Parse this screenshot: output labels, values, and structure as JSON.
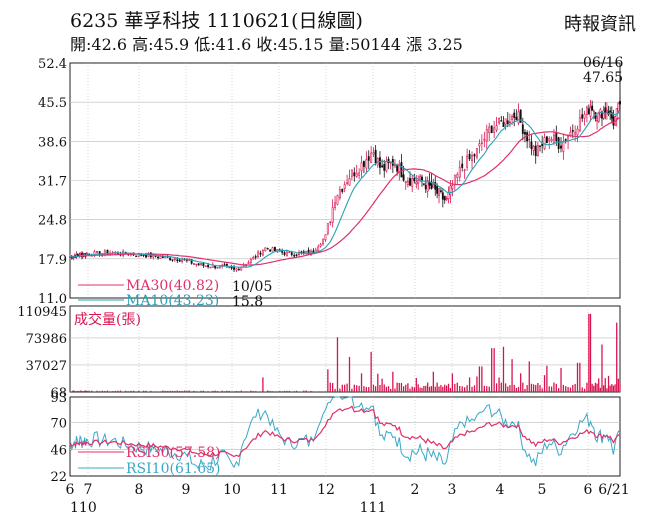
{
  "header": {
    "code": "6235",
    "name": "華孚科技",
    "date": "1110621",
    "period": "(日線圖)",
    "brand": "時報資訊",
    "open_label": "開:",
    "open": "42.6",
    "high_label": "高:",
    "high": "45.9",
    "low_label": "低:",
    "low": "41.6",
    "close_label": "收:",
    "close": "45.15",
    "volume_label": "量:",
    "volume": "50144",
    "change_label": "漲",
    "change": "3.25"
  },
  "chart_data": {
    "type": "candlestick",
    "price_panel": {
      "y_ticks": [
        "52.4",
        "45.5",
        "38.6",
        "31.7",
        "24.8",
        "17.9",
        "11.0"
      ],
      "ylim": [
        11.0,
        52.4
      ],
      "ma_labels": [
        "MA30(40.82)",
        "MA10(43.23)"
      ],
      "ma_colors": [
        "#e0306a",
        "#2aa0b8"
      ],
      "annotations": [
        {
          "label": "06/16",
          "value": "47.65",
          "type": "high"
        },
        {
          "label": "10/05",
          "value": "15.8",
          "type": "low"
        }
      ]
    },
    "volume_panel": {
      "title": "成交量(張)",
      "y_ticks": [
        "110945",
        "73986",
        "37027",
        "68"
      ],
      "ylim": [
        68,
        110945
      ]
    },
    "rsi_panel": {
      "y_ticks": [
        "93",
        "70",
        "46",
        "22"
      ],
      "ylim": [
        22,
        93
      ],
      "rsi_labels": [
        "RSI30(57.58)",
        "RSI10(61.65)"
      ],
      "rsi_colors": [
        "#e0306a",
        "#3aa8c8"
      ]
    },
    "x_axis": {
      "month_labels": [
        "6",
        "7",
        "8",
        "9",
        "10",
        "11",
        "12",
        "1",
        "2",
        "3",
        "4",
        "5",
        "6",
        "6/21"
      ],
      "year_labels": [
        "110",
        "111"
      ]
    },
    "colors": {
      "up": "#d9134f",
      "down": "#111111",
      "grid": "#bbbbbb",
      "ma30": "#e0306a",
      "ma10": "#2aa0b8",
      "rsi30": "#e0306a",
      "rsi10": "#3aa8c8",
      "volume": "#d9134f"
    },
    "keypoints": [
      {
        "m": 0.0,
        "p": 18.3
      },
      {
        "m": 1.5,
        "p": 19.0
      },
      {
        "m": 2.2,
        "p": 18.5
      },
      {
        "m": 2.9,
        "p": 17.8
      },
      {
        "m": 3.3,
        "p": 16.8
      },
      {
        "m": 3.8,
        "p": 16.5
      },
      {
        "m": 4.05,
        "p": 15.9
      },
      {
        "m": 4.4,
        "p": 17.6
      },
      {
        "m": 4.7,
        "p": 19.8
      },
      {
        "m": 5.2,
        "p": 18.8
      },
      {
        "m": 5.7,
        "p": 19.0
      },
      {
        "m": 6.0,
        "p": 22.0
      },
      {
        "m": 6.2,
        "p": 29.0
      },
      {
        "m": 6.5,
        "p": 32.5
      },
      {
        "m": 6.75,
        "p": 34.5
      },
      {
        "m": 7.0,
        "p": 37.0
      },
      {
        "m": 7.2,
        "p": 33.5
      },
      {
        "m": 7.5,
        "p": 35.0
      },
      {
        "m": 7.8,
        "p": 32.0
      },
      {
        "m": 8.2,
        "p": 31.5
      },
      {
        "m": 8.6,
        "p": 29.5
      },
      {
        "m": 8.85,
        "p": 28.0
      },
      {
        "m": 9.2,
        "p": 34.0
      },
      {
        "m": 9.5,
        "p": 36.5
      },
      {
        "m": 9.8,
        "p": 41.0
      },
      {
        "m": 10.1,
        "p": 42.0
      },
      {
        "m": 10.4,
        "p": 43.5
      },
      {
        "m": 10.6,
        "p": 40.0
      },
      {
        "m": 10.85,
        "p": 36.5
      },
      {
        "m": 11.15,
        "p": 39.5
      },
      {
        "m": 11.4,
        "p": 38.0
      },
      {
        "m": 11.8,
        "p": 42.0
      },
      {
        "m": 12.1,
        "p": 45.0
      },
      {
        "m": 12.3,
        "p": 43.0
      },
      {
        "m": 12.6,
        "p": 44.5
      },
      {
        "m": 12.8,
        "p": 42.0
      },
      {
        "m": 13.0,
        "p": 45.15
      }
    ],
    "volume_bursts": [
      {
        "m": 4.65,
        "v": 20000
      },
      {
        "m": 6.05,
        "v": 38000
      },
      {
        "m": 6.25,
        "v": 75000
      },
      {
        "m": 6.5,
        "v": 48000
      },
      {
        "m": 6.75,
        "v": 60000
      },
      {
        "m": 6.95,
        "v": 55000
      },
      {
        "m": 7.1,
        "v": 45000
      },
      {
        "m": 9.35,
        "v": 20000
      },
      {
        "m": 9.6,
        "v": 35000
      },
      {
        "m": 9.85,
        "v": 60000
      },
      {
        "m": 10.1,
        "v": 62000
      },
      {
        "m": 10.3,
        "v": 45000
      },
      {
        "m": 10.7,
        "v": 42000
      },
      {
        "m": 11.1,
        "v": 36000
      },
      {
        "m": 11.4,
        "v": 33000
      },
      {
        "m": 11.8,
        "v": 40000
      },
      {
        "m": 12.05,
        "v": 107000
      },
      {
        "m": 12.45,
        "v": 65000
      },
      {
        "m": 12.9,
        "v": 95000
      }
    ]
  }
}
